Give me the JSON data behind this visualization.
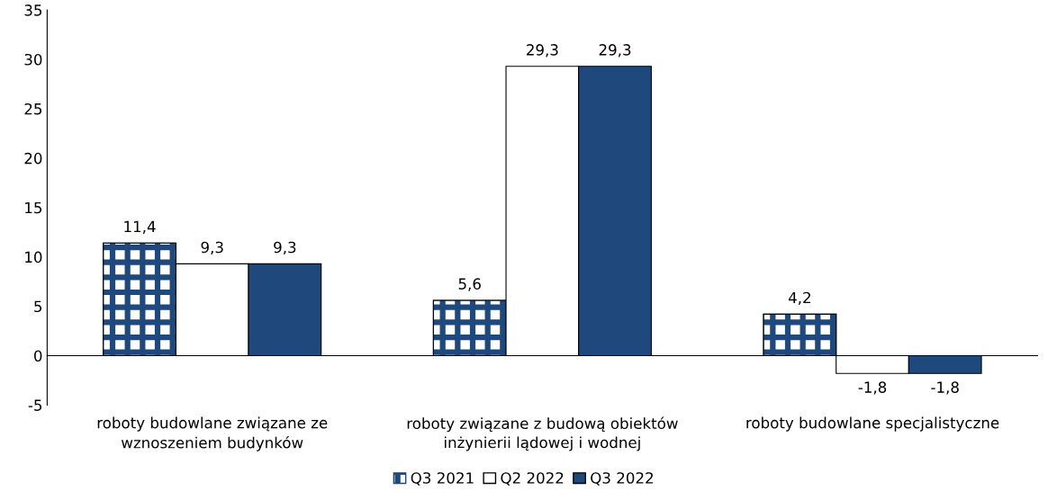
{
  "chart_data": {
    "type": "bar",
    "categories": [
      "roboty budowlane związane ze\nwznoszeniem budynków",
      "roboty związane z budową obiektów\ninżynierii lądowej i wodnej",
      "roboty budowlane specjalistyczne"
    ],
    "series": [
      {
        "name": "Q3 2021",
        "color": "#1f497d",
        "values": [
          11.4,
          5.6,
          4.2
        ],
        "value_labels": [
          "11,4",
          "5,6",
          "4,2"
        ]
      },
      {
        "name": "Q2 2022",
        "color": "#ffffff",
        "values": [
          9.3,
          29.3,
          -1.8
        ],
        "value_labels": [
          "9,3",
          "29,3",
          "-1,8"
        ]
      },
      {
        "name": "Q3 2022",
        "color": "#1f497d",
        "values": [
          9.3,
          29.3,
          -1.8
        ],
        "value_labels": [
          "9,3",
          "29,3",
          "-1,8"
        ]
      }
    ],
    "ylim": [
      -5,
      35
    ],
    "yticks": [
      -5,
      0,
      5,
      10,
      15,
      20,
      25,
      30,
      35
    ],
    "legend": "bottom"
  }
}
